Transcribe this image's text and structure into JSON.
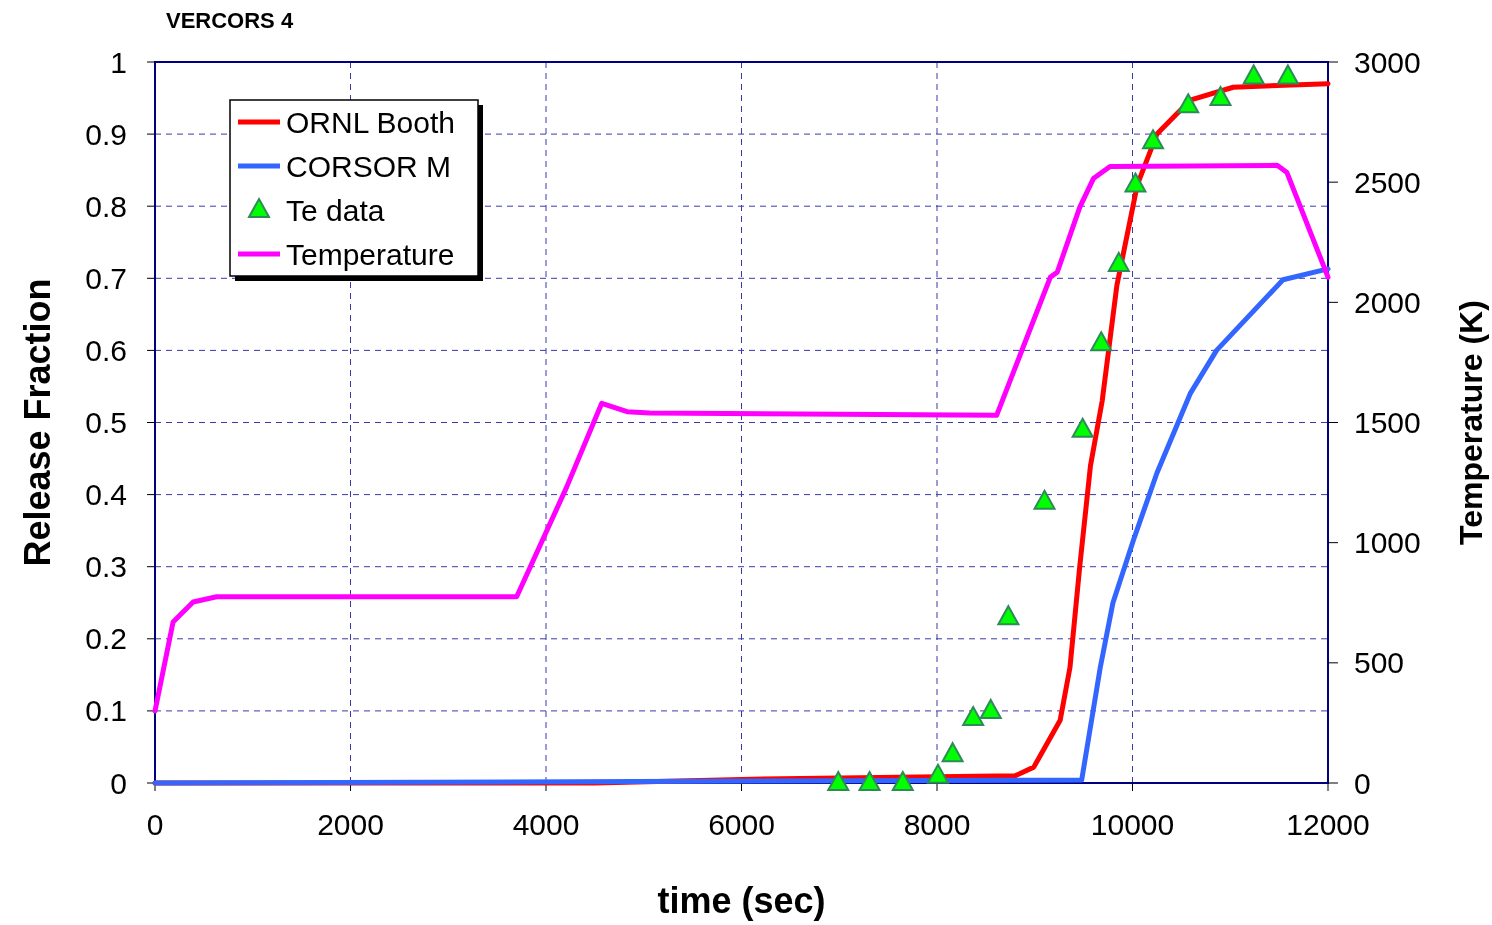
{
  "chart_data": {
    "type": "line",
    "title": "VERCORS 4",
    "xlabel": "time (sec)",
    "ylabel": "Release Fraction",
    "y2label": "Temperature (K)",
    "xlim": [
      0,
      12000
    ],
    "xticks": [
      0,
      2000,
      4000,
      6000,
      8000,
      10000,
      12000
    ],
    "ylim": [
      0,
      1
    ],
    "yticks": [
      0,
      0.1,
      0.2,
      0.3,
      0.4,
      0.5,
      0.6,
      0.7,
      0.8,
      0.9,
      1
    ],
    "y2lim": [
      0,
      3000
    ],
    "y2ticks": [
      0,
      500,
      1000,
      1500,
      2000,
      2500,
      3000
    ],
    "grid": true,
    "legend": "top left",
    "line_style": "solid",
    "series": [
      {
        "name": "ORNL Booth",
        "color": "#ff0000",
        "x": [
          0,
          4500,
          6000,
          8800,
          8990,
          9260,
          9360,
          9460,
          9570,
          9690,
          9840,
          10050,
          10250,
          10590,
          11030,
          12000
        ],
        "values": [
          0,
          0,
          0.005,
          0.01,
          0.022,
          0.087,
          0.16,
          0.3,
          0.44,
          0.53,
          0.69,
          0.83,
          0.9,
          0.947,
          0.965,
          0.97
        ]
      },
      {
        "name": "CORSOR M",
        "color": "#3366ff",
        "x": [
          0,
          9480,
          9670,
          9800,
          10010,
          10250,
          10590,
          10860,
          11540,
          12000
        ],
        "values": [
          0,
          0.004,
          0.16,
          0.25,
          0.337,
          0.43,
          0.54,
          0.6,
          0.698,
          0.713
        ]
      },
      {
        "name": "Te data",
        "color": "#00ff00",
        "type": "scatter",
        "marker": "triangle",
        "x": [
          6990,
          7310,
          7650,
          8010,
          8160,
          8370,
          8550,
          8730,
          9100,
          9490,
          9680,
          9860,
          10030,
          10210,
          10570,
          10900,
          11240,
          11590
        ],
        "values": [
          0,
          0,
          0,
          0.01,
          0.04,
          0.09,
          0.1,
          0.23,
          0.39,
          0.49,
          0.61,
          0.72,
          0.83,
          0.89,
          0.94,
          0.95,
          0.98,
          0.98
        ]
      },
      {
        "name": "Temperature",
        "color": "#ff00ff",
        "axis": "y2",
        "x": [
          0,
          185,
          390,
          630,
          3700,
          4210,
          4570,
          4830,
          5060,
          8610,
          9160,
          9230,
          9460,
          9600,
          9770,
          11480,
          11580,
          12000
        ],
        "values": [
          300,
          670,
          753,
          775,
          775,
          1230,
          1580,
          1545,
          1540,
          1530,
          2105,
          2125,
          2395,
          2515,
          2565,
          2570,
          2540,
          2105
        ]
      }
    ]
  }
}
